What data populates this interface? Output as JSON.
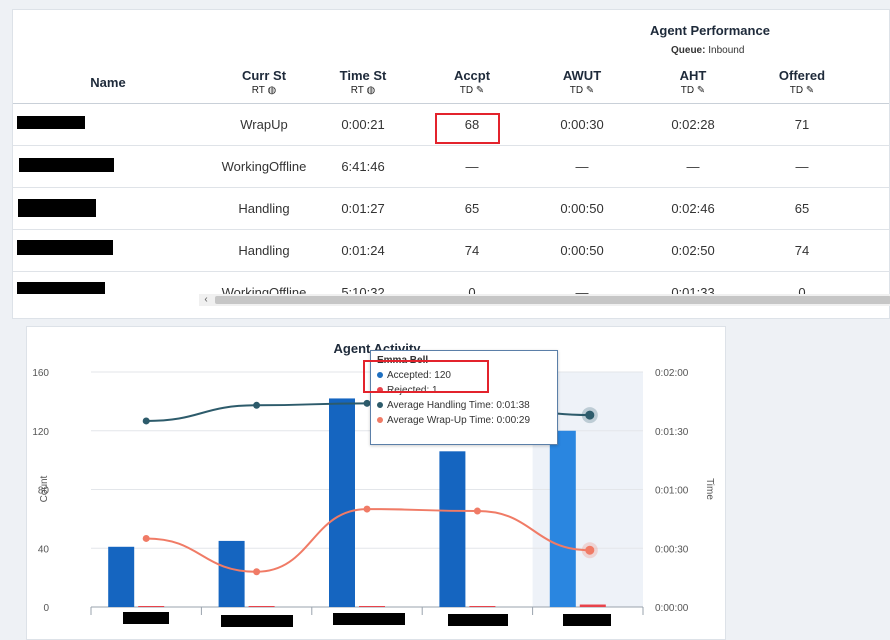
{
  "performance": {
    "title": "Agent Performance",
    "queue_label": "Queue:",
    "queue_value": "Inbound",
    "columns": [
      {
        "label": "Name",
        "sub": ""
      },
      {
        "label": "Curr St",
        "sub": "RT"
      },
      {
        "label": "Time St",
        "sub": "RT"
      },
      {
        "label": "Accpt",
        "sub": "TD"
      },
      {
        "label": "AWUT",
        "sub": "TD"
      },
      {
        "label": "AHT",
        "sub": "TD"
      },
      {
        "label": "Offered",
        "sub": "TD"
      }
    ],
    "rows": [
      {
        "state": "WrapUp",
        "time": "0:00:21",
        "accpt": "68",
        "awut": "0:00:30",
        "aht": "0:02:28",
        "offered": "71"
      },
      {
        "state": "WorkingOffline",
        "time": "6:41:46",
        "accpt": "—",
        "awut": "—",
        "aht": "—",
        "offered": "—"
      },
      {
        "state": "Handling",
        "time": "0:01:27",
        "accpt": "65",
        "awut": "0:00:50",
        "aht": "0:02:46",
        "offered": "65"
      },
      {
        "state": "Handling",
        "time": "0:01:24",
        "accpt": "74",
        "awut": "0:00:50",
        "aht": "0:02:50",
        "offered": "74"
      },
      {
        "state": "WorkingOffline",
        "time": "5:10:32",
        "accpt": "0",
        "awut": "—",
        "aht": "0:01:33",
        "offered": "0"
      }
    ],
    "scroll_arrow": "‹"
  },
  "activity": {
    "title": "Agent Activity",
    "tooltip": {
      "name": "Emma Bell",
      "rows": [
        {
          "text": "Accepted: 120",
          "color": "#1f6fc0"
        },
        {
          "text": "Rejected: 1",
          "color": "#e8434b"
        },
        {
          "text": "Average Handling Time: 0:01:38",
          "color": "#2d5b6b"
        },
        {
          "text": "Average Wrap-Up Time: 0:00:29",
          "color": "#f07b66"
        }
      ]
    }
  },
  "chart_data": {
    "type": "bar",
    "title": "Agent Activity",
    "ylabel": "Count",
    "y2label": "Time",
    "ylim": [
      0,
      160
    ],
    "y_ticks": [
      "0",
      "40",
      "80",
      "120",
      "160"
    ],
    "y2_ticks": [
      "0:00:00",
      "0:00:30",
      "0:01:00",
      "0:01:30",
      "0:02:00"
    ],
    "grid": true,
    "categories_count": 5,
    "series": [
      {
        "name": "Accepted",
        "type": "bar",
        "color": "#1565c0",
        "values": [
          41,
          45,
          142,
          106,
          120
        ]
      },
      {
        "name": "Rejected",
        "type": "bar",
        "color": "#e8434b",
        "values": [
          0,
          0,
          0,
          0,
          1
        ]
      },
      {
        "name": "Average Handling Time",
        "type": "line",
        "axis": "time",
        "color": "#2d5b6b",
        "values": [
          "0:01:35",
          "0:01:43",
          "0:01:44",
          "0:01:43",
          "0:01:38"
        ]
      },
      {
        "name": "Average Wrap-Up Time",
        "type": "line",
        "axis": "time",
        "color": "#f07b66",
        "values": [
          "0:00:35",
          "0:00:18",
          "0:00:50",
          "0:00:49",
          "0:00:29"
        ]
      }
    ]
  }
}
